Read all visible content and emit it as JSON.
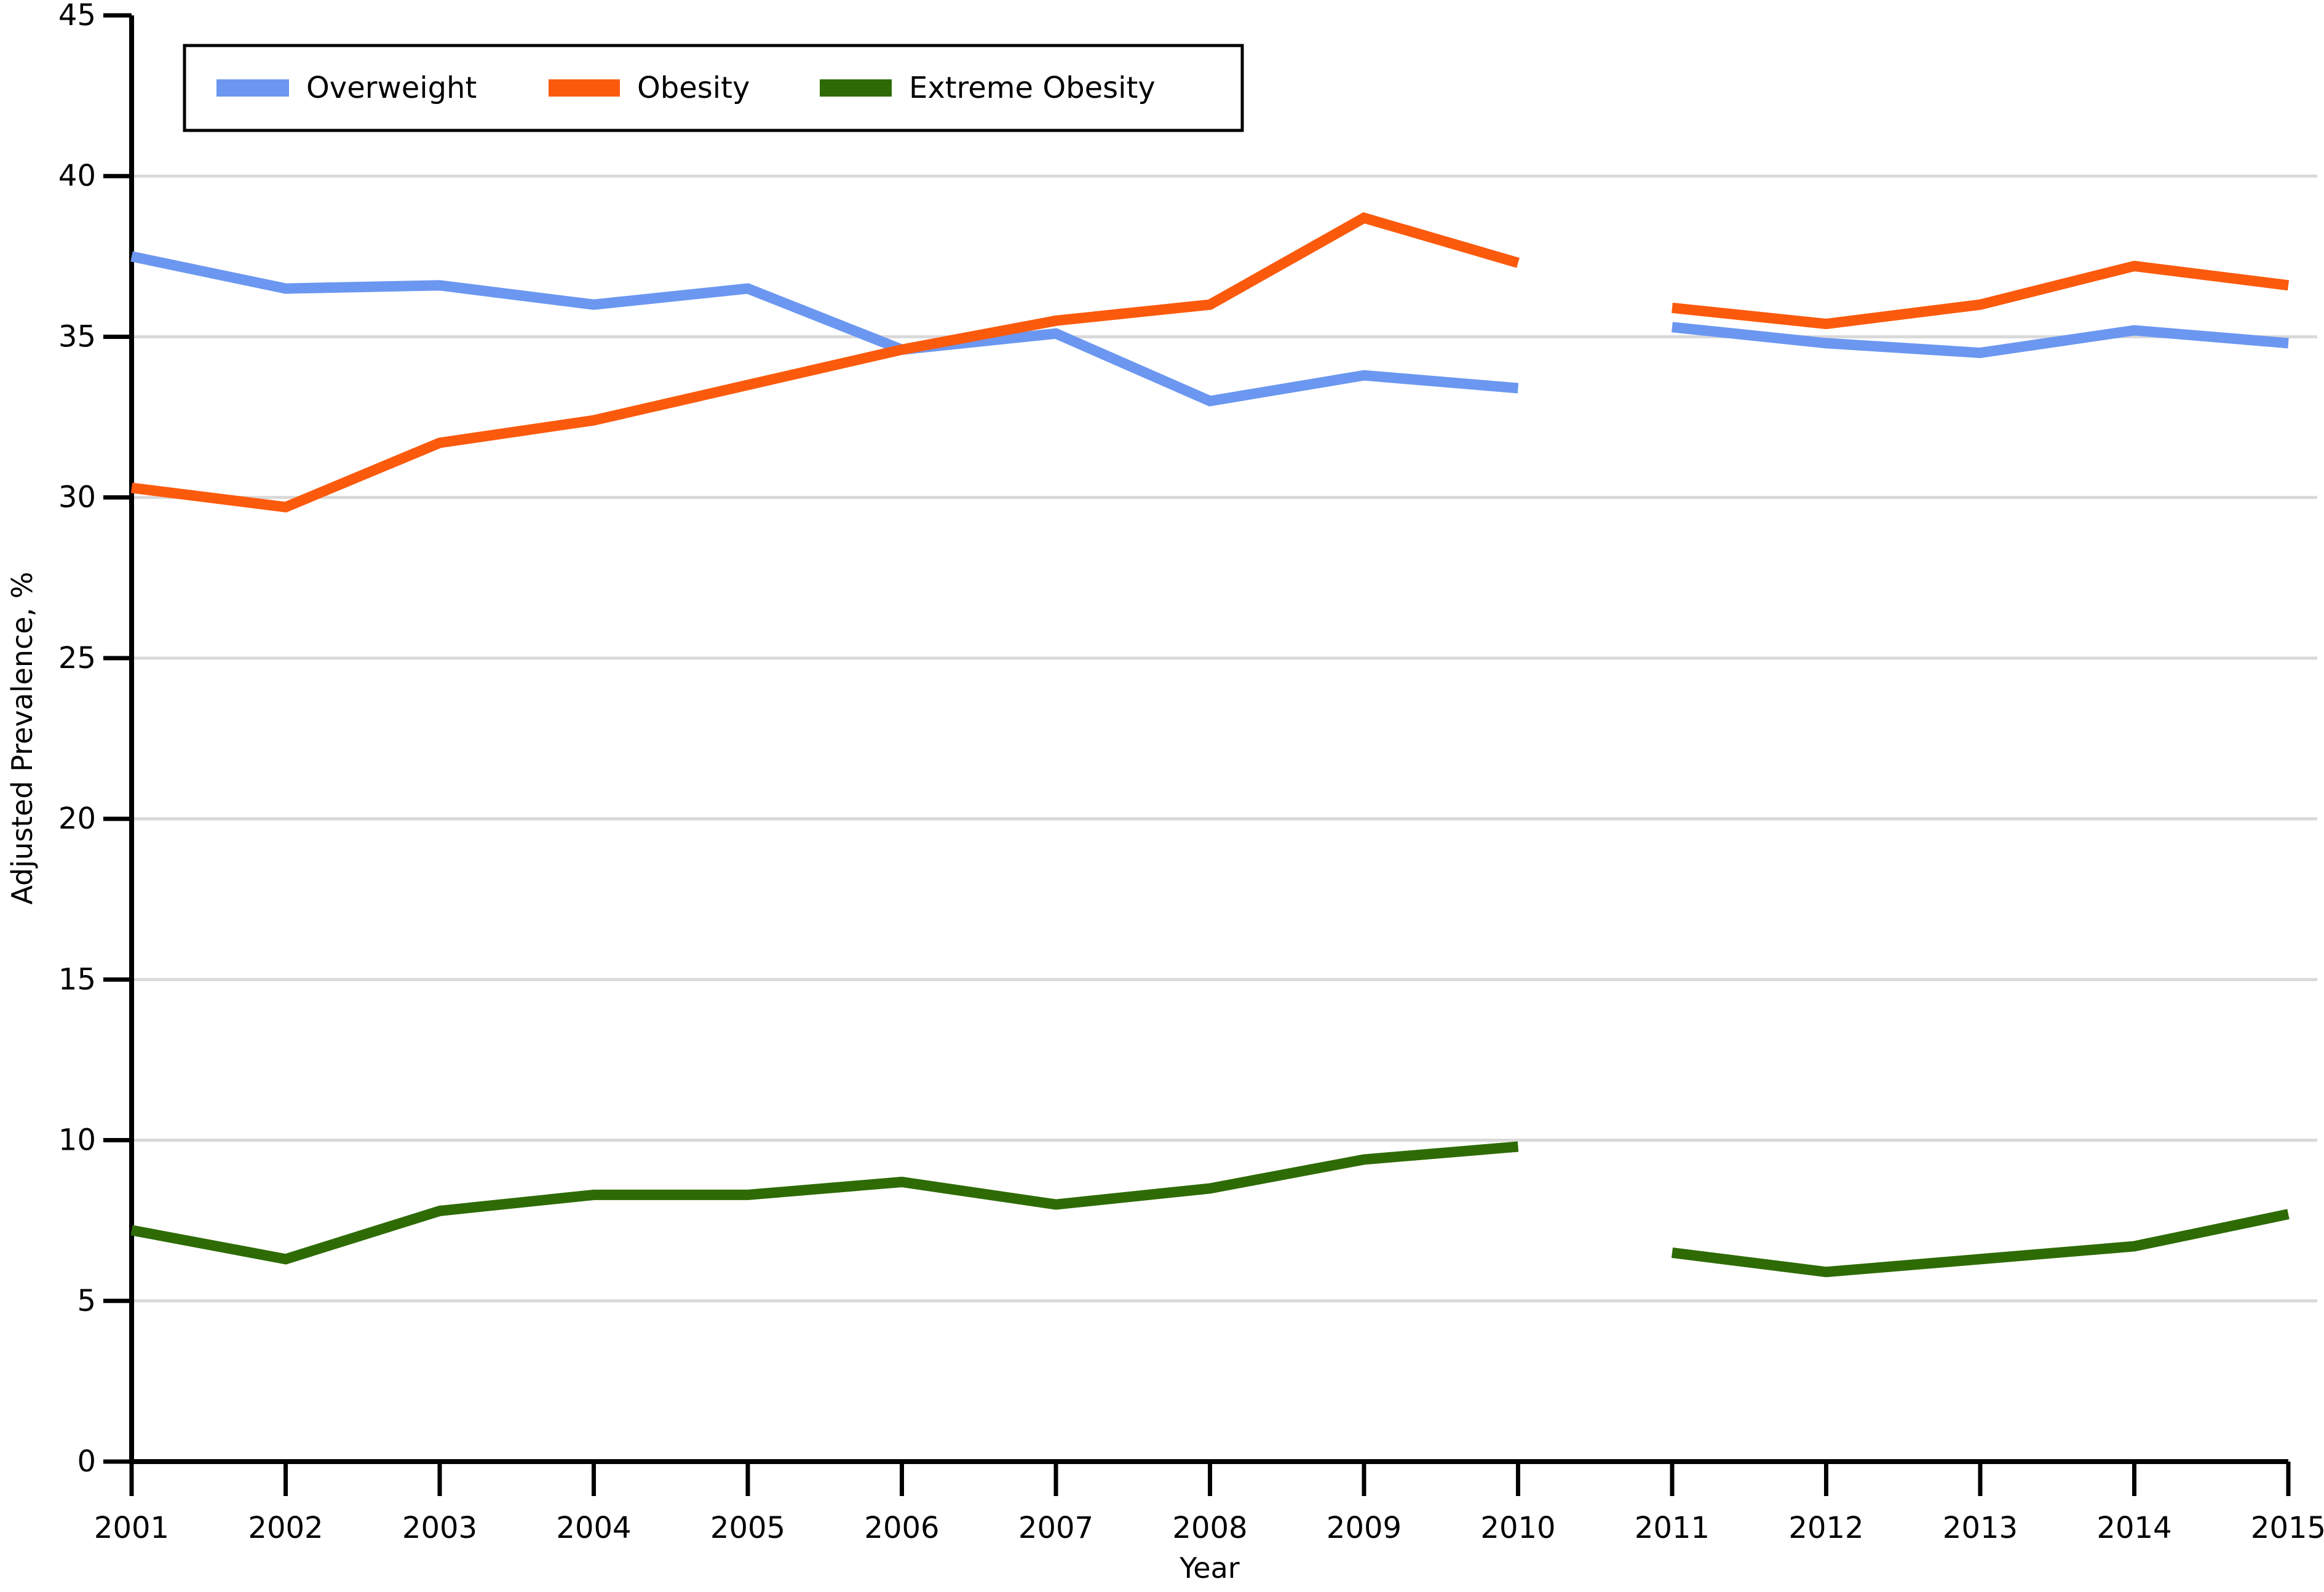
{
  "chart_data": {
    "type": "line",
    "title": "",
    "xlabel": "Year",
    "ylabel": "Adjusted Prevalence, %",
    "x": [
      2001,
      2002,
      2003,
      2004,
      2005,
      2006,
      2007,
      2008,
      2009,
      2010,
      2011,
      2012,
      2013,
      2014,
      2015
    ],
    "ylim": [
      0,
      45
    ],
    "y_ticks": [
      0,
      5,
      10,
      15,
      20,
      25,
      30,
      35,
      40,
      45
    ],
    "gridlines": [
      5,
      10,
      15,
      20,
      25,
      30,
      35,
      40
    ],
    "grid_on": true,
    "gap_between": [
      2010,
      2011
    ],
    "legend_position": "top-left",
    "series": [
      {
        "name": "Overweight",
        "color": "#6B97F0",
        "values": [
          37.5,
          36.5,
          36.6,
          36.0,
          36.5,
          34.6,
          35.1,
          33.0,
          33.8,
          33.4,
          35.3,
          34.8,
          34.5,
          35.2,
          34.8
        ]
      },
      {
        "name": "Obesity",
        "color": "#FB5A0D",
        "values": [
          30.3,
          29.7,
          31.7,
          32.4,
          33.5,
          34.6,
          35.5,
          36.0,
          38.7,
          37.3,
          35.9,
          35.4,
          36.0,
          37.2,
          36.6
        ]
      },
      {
        "name": "Extreme Obesity",
        "color": "#2E6B04",
        "values": [
          7.2,
          6.3,
          7.8,
          8.3,
          8.3,
          8.7,
          8.0,
          8.5,
          9.4,
          9.8,
          6.5,
          5.9,
          6.3,
          6.7,
          7.7
        ]
      }
    ],
    "colors": {
      "axis": "#000000",
      "gridline": "#D9D9D9",
      "background": "#FFFFFF"
    }
  }
}
